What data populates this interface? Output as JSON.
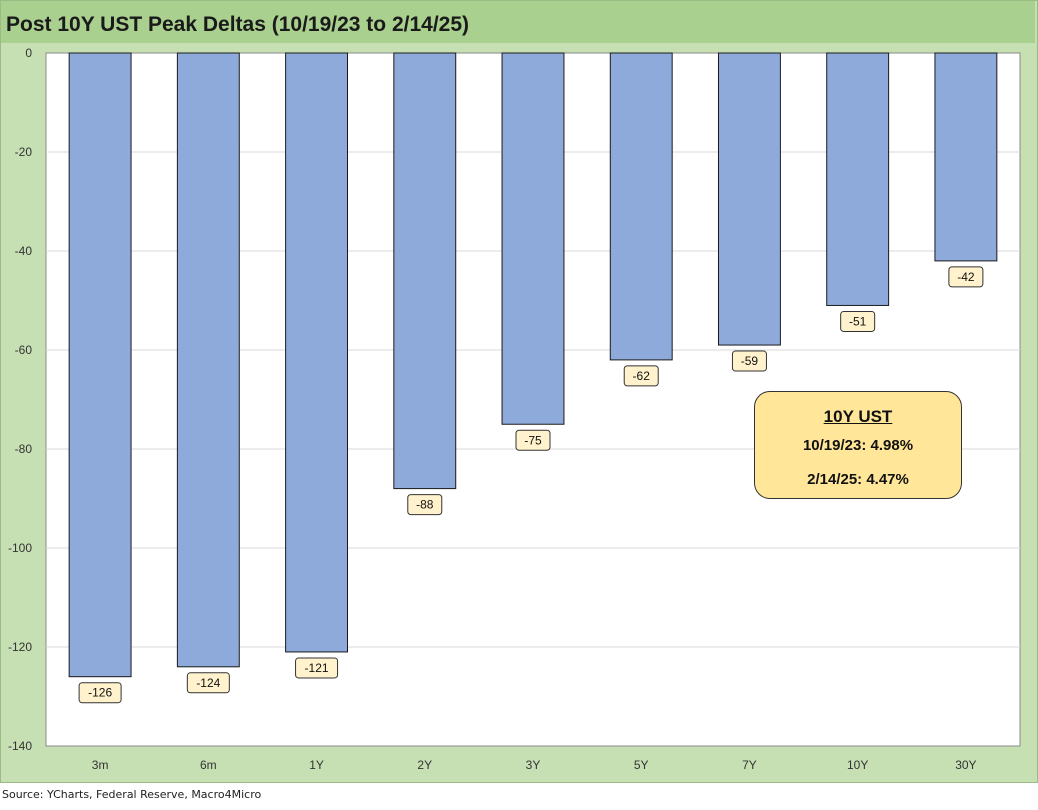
{
  "chart_data": {
    "type": "bar",
    "title": "Post 10Y UST Peak Deltas (10/19/23 to 2/14/25)",
    "xlabel": "",
    "ylabel": "",
    "categories": [
      "3m",
      "6m",
      "1Y",
      "2Y",
      "3Y",
      "5Y",
      "7Y",
      "10Y",
      "30Y"
    ],
    "values": [
      -126,
      -124,
      -121,
      -88,
      -75,
      -62,
      -59,
      -51,
      -42
    ],
    "data_labels": [
      "-126",
      "-124",
      "-121",
      "-88",
      "-75",
      "-62",
      "-59",
      "-51",
      "-42"
    ],
    "ylim": [
      -140,
      0
    ],
    "yticks": [
      0,
      -20,
      -40,
      -60,
      -80,
      -100,
      -120,
      -140
    ],
    "grid": true,
    "legend": "none",
    "bar_color": "#8eaadb",
    "plot_background": "#ffffff",
    "chart_background": "#c6e0b4",
    "title_background": "#a9d08e",
    "label_background": "#fff2cc"
  },
  "annotation": {
    "title": "10Y UST",
    "line1": "10/19/23: 4.98%",
    "line2": "2/14/25: 4.47%",
    "background": "#ffe699"
  },
  "source": "Source: YCharts, Federal Reserve, Macro4Micro"
}
